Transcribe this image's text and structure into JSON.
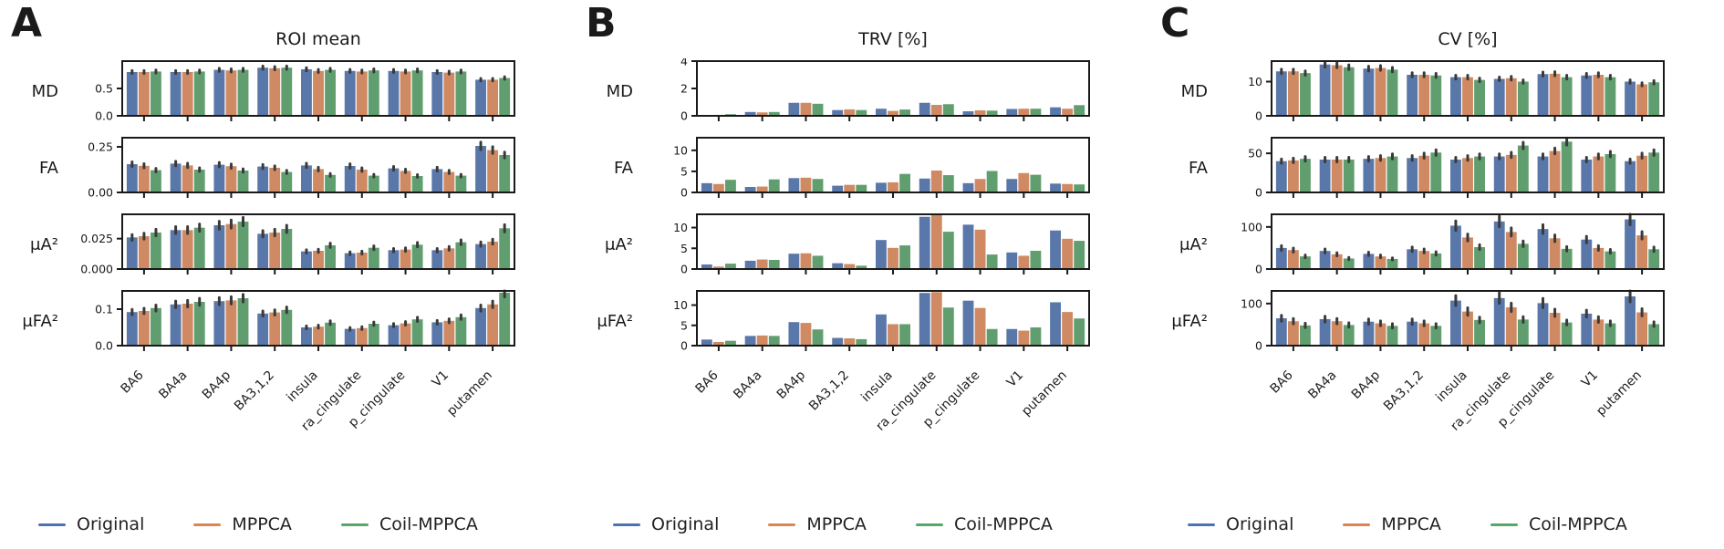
{
  "colors": {
    "bar_original": "#5a77a9",
    "bar_mppca": "#cf8a63",
    "bar_coil_mppca": "#619e6f",
    "legend_original": "#4c72b0",
    "legend_mppca": "#dd8452",
    "legend_coil_mppca": "#55a868",
    "error_bar": "#3a3a3a",
    "axis": "#1a1a1a"
  },
  "legend": {
    "items": [
      {
        "label": "Original",
        "color": "#4c72b0"
      },
      {
        "label": "MPPCA",
        "color": "#dd8452"
      },
      {
        "label": "Coil-MPPCA",
        "color": "#55a868"
      }
    ]
  },
  "chart_data": [
    {
      "type": "bar",
      "panel": "A",
      "title": "ROI mean",
      "legend_position": "bottom",
      "categories": [
        "BA6",
        "BA4a",
        "BA4p",
        "BA3,1,2",
        "insula",
        "ra_cingulate",
        "p_cingulate",
        "V1",
        "putamen"
      ],
      "rows": [
        {
          "metric": "MD",
          "ylim": [
            0,
            1.0
          ],
          "yticks": [
            {
              "v": 0.0,
              "label": "0.0"
            },
            {
              "v": 0.5,
              "label": "0.5"
            }
          ],
          "err_frac": 0.035,
          "series": [
            {
              "name": "Original",
              "values": [
                0.8,
                0.8,
                0.84,
                0.88,
                0.85,
                0.82,
                0.82,
                0.8,
                0.66
              ]
            },
            {
              "name": "MPPCA",
              "values": [
                0.8,
                0.8,
                0.83,
                0.87,
                0.82,
                0.81,
                0.81,
                0.79,
                0.66
              ]
            },
            {
              "name": "Coil-MPPCA",
              "values": [
                0.81,
                0.81,
                0.84,
                0.88,
                0.84,
                0.83,
                0.83,
                0.81,
                0.69
              ]
            }
          ]
        },
        {
          "metric": "FA",
          "ylim": [
            0,
            0.3
          ],
          "yticks": [
            {
              "v": 0.0,
              "label": "0.00"
            },
            {
              "v": 0.25,
              "label": "0.25"
            }
          ],
          "err_frac": 0.08,
          "series": [
            {
              "name": "Original",
              "values": [
                0.155,
                0.158,
                0.152,
                0.142,
                0.148,
                0.145,
                0.132,
                0.128,
                0.255
              ]
            },
            {
              "name": "MPPCA",
              "values": [
                0.146,
                0.148,
                0.144,
                0.135,
                0.128,
                0.125,
                0.118,
                0.112,
                0.232
              ]
            },
            {
              "name": "Coil-MPPCA",
              "values": [
                0.122,
                0.125,
                0.12,
                0.112,
                0.096,
                0.092,
                0.09,
                0.092,
                0.205
              ]
            }
          ]
        },
        {
          "metric": "μA²",
          "ylim": [
            0,
            0.045
          ],
          "yticks": [
            {
              "v": 0.0,
              "label": "0.000"
            },
            {
              "v": 0.025,
              "label": "0.025"
            }
          ],
          "err_frac": 0.09,
          "series": [
            {
              "name": "Original",
              "values": [
                0.026,
                0.032,
                0.036,
                0.029,
                0.0145,
                0.013,
                0.0155,
                0.0155,
                0.0205
              ]
            },
            {
              "name": "MPPCA",
              "values": [
                0.027,
                0.032,
                0.037,
                0.03,
                0.015,
                0.0135,
                0.016,
                0.017,
                0.0225
              ]
            },
            {
              "name": "Coil-MPPCA",
              "values": [
                0.03,
                0.034,
                0.039,
                0.033,
                0.0195,
                0.0175,
                0.02,
                0.022,
                0.0335
              ]
            }
          ]
        },
        {
          "metric": "μFA²",
          "ylim": [
            0,
            0.15
          ],
          "yticks": [
            {
              "v": 0.0,
              "label": "0.0"
            },
            {
              "v": 0.1,
              "label": "0.1"
            }
          ],
          "err_frac": 0.08,
          "series": [
            {
              "name": "Original",
              "values": [
                0.092,
                0.113,
                0.122,
                0.088,
                0.05,
                0.046,
                0.056,
                0.064,
                0.103
              ]
            },
            {
              "name": "MPPCA",
              "values": [
                0.095,
                0.115,
                0.124,
                0.091,
                0.052,
                0.048,
                0.061,
                0.068,
                0.113
              ]
            },
            {
              "name": "Coil-MPPCA",
              "values": [
                0.103,
                0.12,
                0.13,
                0.098,
                0.063,
                0.06,
                0.072,
                0.078,
                0.145
              ]
            }
          ]
        }
      ]
    },
    {
      "type": "bar",
      "panel": "B",
      "title": "TRV [%]",
      "legend_position": "bottom",
      "categories": [
        "BA6",
        "BA4a",
        "BA4p",
        "BA3,1,2",
        "insula",
        "ra_cingulate",
        "p_cingulate",
        "V1",
        "putamen"
      ],
      "rows": [
        {
          "metric": "MD",
          "ylim": [
            0,
            4.0
          ],
          "yticks": [
            {
              "v": 0,
              "label": "0"
            },
            {
              "v": 2,
              "label": "2"
            },
            {
              "v": 4,
              "label": "4"
            }
          ],
          "err_frac": 0,
          "series": [
            {
              "name": "Original",
              "values": [
                0.05,
                0.28,
                0.95,
                0.42,
                0.52,
                0.95,
                0.33,
                0.5,
                0.62
              ]
            },
            {
              "name": "MPPCA",
              "values": [
                0.07,
                0.25,
                0.95,
                0.47,
                0.36,
                0.8,
                0.4,
                0.52,
                0.52
              ]
            },
            {
              "name": "Coil-MPPCA",
              "values": [
                0.12,
                0.28,
                0.88,
                0.42,
                0.46,
                0.85,
                0.38,
                0.52,
                0.78
              ]
            }
          ]
        },
        {
          "metric": "FA",
          "ylim": [
            0,
            13.0
          ],
          "yticks": [
            {
              "v": 0,
              "label": "0"
            },
            {
              "v": 5,
              "label": "5"
            },
            {
              "v": 10,
              "label": "10"
            }
          ],
          "err_frac": 0,
          "series": [
            {
              "name": "Original",
              "values": [
                2.2,
                1.3,
                3.4,
                1.6,
                2.3,
                3.3,
                2.2,
                3.2,
                2.1
              ]
            },
            {
              "name": "MPPCA",
              "values": [
                2.0,
                1.4,
                3.5,
                1.8,
                2.4,
                5.2,
                3.2,
                4.6,
                2.0
              ]
            },
            {
              "name": "Coil-MPPCA",
              "values": [
                3.0,
                3.1,
                3.2,
                1.8,
                4.4,
                4.1,
                5.1,
                4.2,
                1.9
              ]
            }
          ]
        },
        {
          "metric": "μA²",
          "ylim": [
            0,
            13.2
          ],
          "yticks": [
            {
              "v": 0,
              "label": "0"
            },
            {
              "v": 5,
              "label": "5"
            },
            {
              "v": 10,
              "label": "10"
            }
          ],
          "err_frac": 0,
          "series": [
            {
              "name": "Original",
              "values": [
                1.1,
                2.0,
                3.7,
                1.4,
                7.0,
                12.6,
                10.7,
                4.0,
                9.3
              ]
            },
            {
              "name": "MPPCA",
              "values": [
                0.6,
                2.3,
                3.8,
                1.2,
                5.1,
                13.0,
                9.5,
                3.2,
                7.3
              ]
            },
            {
              "name": "Coil-MPPCA",
              "values": [
                1.3,
                2.2,
                3.2,
                0.8,
                5.7,
                9.0,
                3.5,
                4.4,
                6.8
              ]
            }
          ]
        },
        {
          "metric": "μFA²",
          "ylim": [
            0,
            13.5
          ],
          "yticks": [
            {
              "v": 0,
              "label": "0"
            },
            {
              "v": 5,
              "label": "5"
            },
            {
              "v": 10,
              "label": "10"
            }
          ],
          "err_frac": 0,
          "series": [
            {
              "name": "Original",
              "values": [
                1.5,
                2.4,
                5.8,
                1.9,
                7.7,
                13.0,
                11.1,
                4.1,
                10.7
              ]
            },
            {
              "name": "MPPCA",
              "values": [
                0.9,
                2.5,
                5.6,
                1.8,
                5.3,
                13.2,
                9.3,
                3.7,
                8.3
              ]
            },
            {
              "name": "Coil-MPPCA",
              "values": [
                1.2,
                2.4,
                4.0,
                1.6,
                5.3,
                9.4,
                4.1,
                4.5,
                6.7
              ]
            }
          ]
        }
      ]
    },
    {
      "type": "bar",
      "panel": "C",
      "title": "CV [%]",
      "legend_position": "bottom",
      "categories": [
        "BA6",
        "BA4a",
        "BA4p",
        "BA3,1,2",
        "insula",
        "ra_cingulate",
        "p_cingulate",
        "V1",
        "putamen"
      ],
      "rows": [
        {
          "metric": "MD",
          "ylim": [
            0,
            16.0
          ],
          "yticks": [
            {
              "v": 0,
              "label": "0"
            },
            {
              "v": 10,
              "label": "10"
            }
          ],
          "err_frac": 0.05,
          "series": [
            {
              "name": "Original",
              "values": [
                13.0,
                15.0,
                13.8,
                12.0,
                11.3,
                10.8,
                12.2,
                11.8,
                10.0
              ]
            },
            {
              "name": "MPPCA",
              "values": [
                13.0,
                14.8,
                14.0,
                12.0,
                11.3,
                11.0,
                12.3,
                12.0,
                9.2
              ]
            },
            {
              "name": "Coil-MPPCA",
              "values": [
                12.5,
                14.2,
                13.5,
                11.8,
                10.5,
                10.0,
                11.3,
                11.3,
                9.8
              ]
            }
          ]
        },
        {
          "metric": "FA",
          "ylim": [
            0,
            70.0
          ],
          "yticks": [
            {
              "v": 0,
              "label": "0"
            },
            {
              "v": 50,
              "label": "50"
            }
          ],
          "err_frac": 0.07,
          "series": [
            {
              "name": "Original",
              "values": [
                40,
                42,
                43,
                44,
                42,
                46,
                46,
                42,
                40
              ]
            },
            {
              "name": "MPPCA",
              "values": [
                41,
                42,
                44,
                47,
                44,
                48,
                53,
                46,
                47
              ]
            },
            {
              "name": "Coil-MPPCA",
              "values": [
                43,
                42,
                46,
                51,
                46,
                60,
                65,
                49,
                51
              ]
            }
          ]
        },
        {
          "metric": "μA²",
          "ylim": [
            0,
            130.0
          ],
          "yticks": [
            {
              "v": 0,
              "label": "0"
            },
            {
              "v": 100,
              "label": "100"
            }
          ],
          "err_frac": 0.11,
          "series": [
            {
              "name": "Original",
              "values": [
                50,
                43,
                36,
                47,
                103,
                113,
                95,
                70,
                118
              ]
            },
            {
              "name": "MPPCA",
              "values": [
                45,
                35,
                30,
                43,
                75,
                88,
                73,
                50,
                80
              ]
            },
            {
              "name": "Coil-MPPCA",
              "values": [
                30,
                25,
                24,
                37,
                52,
                60,
                48,
                42,
                47
              ]
            }
          ]
        },
        {
          "metric": "μFA²",
          "ylim": [
            0,
            130.0
          ],
          "yticks": [
            {
              "v": 0,
              "label": "0"
            },
            {
              "v": 100,
              "label": "100"
            }
          ],
          "err_frac": 0.11,
          "series": [
            {
              "name": "Original",
              "values": [
                65,
                63,
                57,
                57,
                107,
                113,
                101,
                76,
                117
              ]
            },
            {
              "name": "MPPCA",
              "values": [
                58,
                58,
                53,
                53,
                81,
                91,
                78,
                62,
                79
              ]
            },
            {
              "name": "Coil-MPPCA",
              "values": [
                48,
                49,
                47,
                47,
                61,
                62,
                55,
                53,
                51
              ]
            }
          ]
        }
      ]
    }
  ]
}
